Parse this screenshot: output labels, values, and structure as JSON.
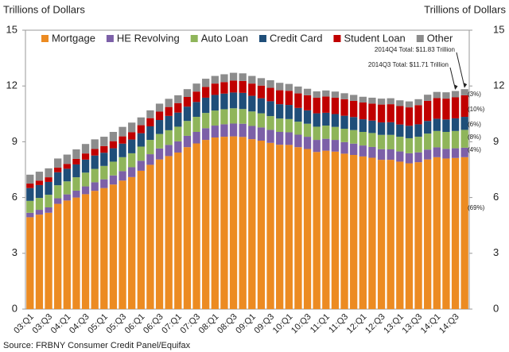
{
  "chart_data": {
    "type": "stacked_bar",
    "y_label": "Trillions of Dollars",
    "y2_label": "Trillions of Dollars",
    "source": "Source: FRBNY Consumer Credit Panel/Equifax",
    "categories": [
      "03:Q1",
      null,
      "03:Q3",
      null,
      "04:Q1",
      null,
      "04:Q3",
      null,
      "05:Q1",
      null,
      "05:Q3",
      null,
      "06:Q1",
      null,
      "06:Q3",
      null,
      "07:Q1",
      null,
      "07:Q3",
      null,
      "08:Q1",
      null,
      "08:Q3",
      null,
      "09:Q1",
      null,
      "09:Q3",
      null,
      "10:Q1",
      null,
      "10:Q3",
      null,
      "11:Q1",
      null,
      "11:Q3",
      null,
      "12:Q1",
      null,
      "12:Q3",
      null,
      "13:Q1",
      null,
      "13:Q3",
      null,
      "14:Q1",
      null,
      "14:Q3",
      null
    ],
    "series": [
      {
        "name": "Mortgage",
        "color": "#ec8b22",
        "values": [
          4.94,
          5.08,
          5.18,
          5.66,
          5.84,
          6.0,
          6.18,
          6.36,
          6.51,
          6.7,
          6.91,
          7.1,
          7.44,
          7.76,
          8.05,
          8.23,
          8.42,
          8.71,
          8.91,
          9.1,
          9.23,
          9.27,
          9.29,
          9.26,
          9.14,
          9.06,
          8.94,
          8.84,
          8.83,
          8.71,
          8.61,
          8.45,
          8.52,
          8.47,
          8.36,
          8.29,
          8.21,
          8.14,
          8.03,
          8.03,
          7.93,
          7.84,
          7.9,
          8.05,
          8.17,
          8.1,
          8.13,
          8.17
        ]
      },
      {
        "name": "HE Revolving",
        "color": "#7c60a8",
        "values": [
          0.24,
          0.26,
          0.29,
          0.3,
          0.33,
          0.37,
          0.42,
          0.46,
          0.47,
          0.49,
          0.51,
          0.53,
          0.54,
          0.57,
          0.59,
          0.6,
          0.6,
          0.61,
          0.62,
          0.63,
          0.64,
          0.67,
          0.69,
          0.71,
          0.71,
          0.71,
          0.7,
          0.69,
          0.68,
          0.67,
          0.66,
          0.65,
          0.64,
          0.63,
          0.62,
          0.61,
          0.59,
          0.58,
          0.57,
          0.56,
          0.55,
          0.54,
          0.53,
          0.53,
          0.53,
          0.52,
          0.52,
          0.51
        ]
      },
      {
        "name": "Auto Loan",
        "color": "#8fb55a",
        "values": [
          0.64,
          0.64,
          0.68,
          0.7,
          0.7,
          0.72,
          0.74,
          0.72,
          0.72,
          0.74,
          0.75,
          0.75,
          0.76,
          0.77,
          0.78,
          0.79,
          0.79,
          0.8,
          0.81,
          0.82,
          0.81,
          0.81,
          0.82,
          0.79,
          0.78,
          0.76,
          0.74,
          0.72,
          0.71,
          0.7,
          0.7,
          0.71,
          0.71,
          0.7,
          0.72,
          0.73,
          0.73,
          0.75,
          0.77,
          0.78,
          0.79,
          0.81,
          0.84,
          0.86,
          0.88,
          0.91,
          0.93,
          0.96
        ]
      },
      {
        "name": "Credit Card",
        "color": "#1f4e79",
        "values": [
          0.69,
          0.69,
          0.69,
          0.7,
          0.68,
          0.69,
          0.7,
          0.72,
          0.71,
          0.72,
          0.73,
          0.74,
          0.72,
          0.73,
          0.75,
          0.77,
          0.76,
          0.77,
          0.8,
          0.82,
          0.84,
          0.84,
          0.85,
          0.87,
          0.84,
          0.81,
          0.8,
          0.77,
          0.76,
          0.74,
          0.72,
          0.72,
          0.69,
          0.69,
          0.7,
          0.7,
          0.68,
          0.67,
          0.67,
          0.68,
          0.66,
          0.67,
          0.67,
          0.68,
          0.66,
          0.67,
          0.68,
          0.7
        ]
      },
      {
        "name": "Student Loan",
        "color": "#c00000",
        "values": [
          0.24,
          0.24,
          0.25,
          0.25,
          0.26,
          0.3,
          0.33,
          0.35,
          0.36,
          0.38,
          0.39,
          0.39,
          0.43,
          0.44,
          0.45,
          0.48,
          0.51,
          0.52,
          0.56,
          0.58,
          0.61,
          0.62,
          0.64,
          0.64,
          0.66,
          0.68,
          0.72,
          0.75,
          0.76,
          0.78,
          0.81,
          0.84,
          0.87,
          0.88,
          0.89,
          0.87,
          0.9,
          0.91,
          0.96,
          0.97,
          0.99,
          0.99,
          1.03,
          1.08,
          1.11,
          1.12,
          1.13,
          1.16
        ]
      },
      {
        "name": "Other",
        "color": "#8c8c8c",
        "values": [
          0.48,
          0.48,
          0.48,
          0.49,
          0.5,
          0.51,
          0.51,
          0.52,
          0.5,
          0.5,
          0.51,
          0.52,
          0.42,
          0.42,
          0.43,
          0.44,
          0.42,
          0.42,
          0.43,
          0.44,
          0.41,
          0.42,
          0.42,
          0.41,
          0.41,
          0.4,
          0.41,
          0.4,
          0.37,
          0.37,
          0.35,
          0.34,
          0.33,
          0.33,
          0.32,
          0.32,
          0.31,
          0.32,
          0.32,
          0.32,
          0.31,
          0.32,
          0.32,
          0.33,
          0.33,
          0.34,
          0.34,
          0.33
        ]
      }
    ],
    "ylim": [
      0,
      15
    ],
    "yticks": [
      0,
      3,
      6,
      9,
      12,
      15
    ],
    "y2lim": [
      0,
      15
    ],
    "y2ticks": [
      0,
      3,
      6,
      9,
      12,
      15
    ],
    "grid": false,
    "legend": "top",
    "annotations": [
      "2014Q4 Total: $11.83 Trillion",
      "2014Q3 Total: $11.71 Trillion"
    ],
    "share_labels": [
      "(3%)",
      "(10%)",
      "(6%)",
      "(8%)",
      "(4%)",
      "(69%)"
    ]
  }
}
